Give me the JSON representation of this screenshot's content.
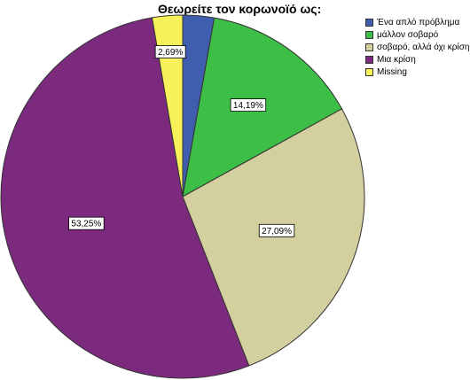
{
  "chart_data": {
    "type": "pie",
    "title": "Θεωρείτε τον κορωνοϊό ως:",
    "slices": [
      {
        "label": "Ένα απλό πρόβλημα",
        "value": 2.78,
        "value_label": "",
        "color": "#3F5FAE"
      },
      {
        "label": "μάλλον σοβαρό",
        "value": 14.19,
        "value_label": "14,19%",
        "color": "#3DBE46"
      },
      {
        "label": "σοβαρό, αλλά όχι  κρίση",
        "value": 27.09,
        "value_label": "27,09%",
        "color": "#D4CF9E"
      },
      {
        "label": "Μια κρίση",
        "value": 53.25,
        "value_label": "53,25%",
        "color": "#7B2A7D"
      },
      {
        "label": "Missing",
        "value": 2.69,
        "value_label": "2,69%",
        "color": "#F8F25A"
      }
    ],
    "start_angle_deg": 0,
    "direction": "clockwise",
    "legend_position": "top-right"
  }
}
